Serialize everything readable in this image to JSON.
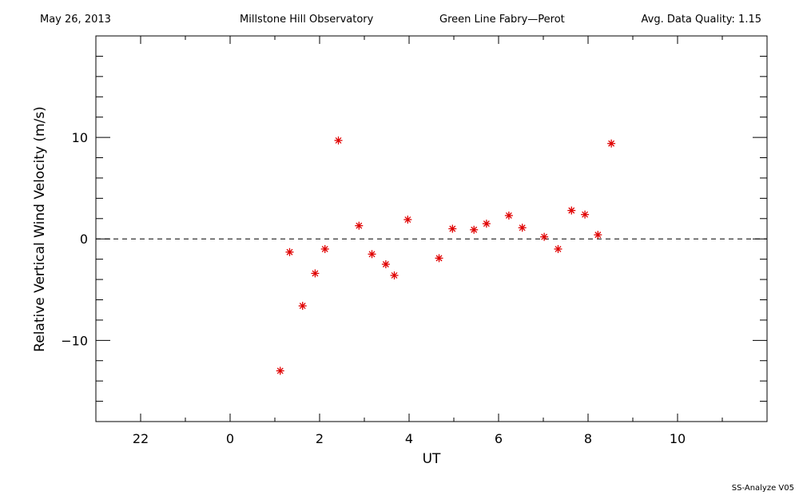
{
  "header": {
    "date": "May 26, 2013",
    "observatory": "Millstone Hill Observatory",
    "instrument": "Green Line Fabry—Perot",
    "quality": "Avg. Data Quality: 1.15"
  },
  "footer": "SS-Analyze V05",
  "chart_data": {
    "type": "scatter",
    "xlabel": "UT",
    "ylabel": "Relative Vertical Wind Velocity (m/s)",
    "xlim": [
      -3,
      12
    ],
    "ylim": [
      -18,
      20
    ],
    "x_tick_labels": [
      "22",
      "0",
      "2",
      "4",
      "6",
      "8",
      "10"
    ],
    "y_tick_labels": [
      "10",
      "0",
      "−10"
    ],
    "reference_line": {
      "y": 0,
      "style": "dashed"
    },
    "marker": "asterisk",
    "marker_color": "#e00000",
    "x": [
      1.12,
      1.33,
      1.62,
      1.9,
      2.12,
      2.42,
      2.88,
      3.17,
      3.48,
      3.67,
      3.97,
      4.67,
      4.97,
      5.45,
      5.73,
      6.23,
      6.53,
      7.02,
      7.33,
      7.63,
      7.93,
      8.22,
      8.52
    ],
    "y": [
      -13.0,
      -1.3,
      -6.6,
      -3.4,
      -1.0,
      9.7,
      1.3,
      -1.5,
      -2.5,
      -3.6,
      1.9,
      -1.9,
      1.0,
      0.9,
      1.5,
      2.3,
      1.1,
      0.2,
      -1.0,
      2.8,
      2.4,
      0.4,
      9.4
    ]
  }
}
